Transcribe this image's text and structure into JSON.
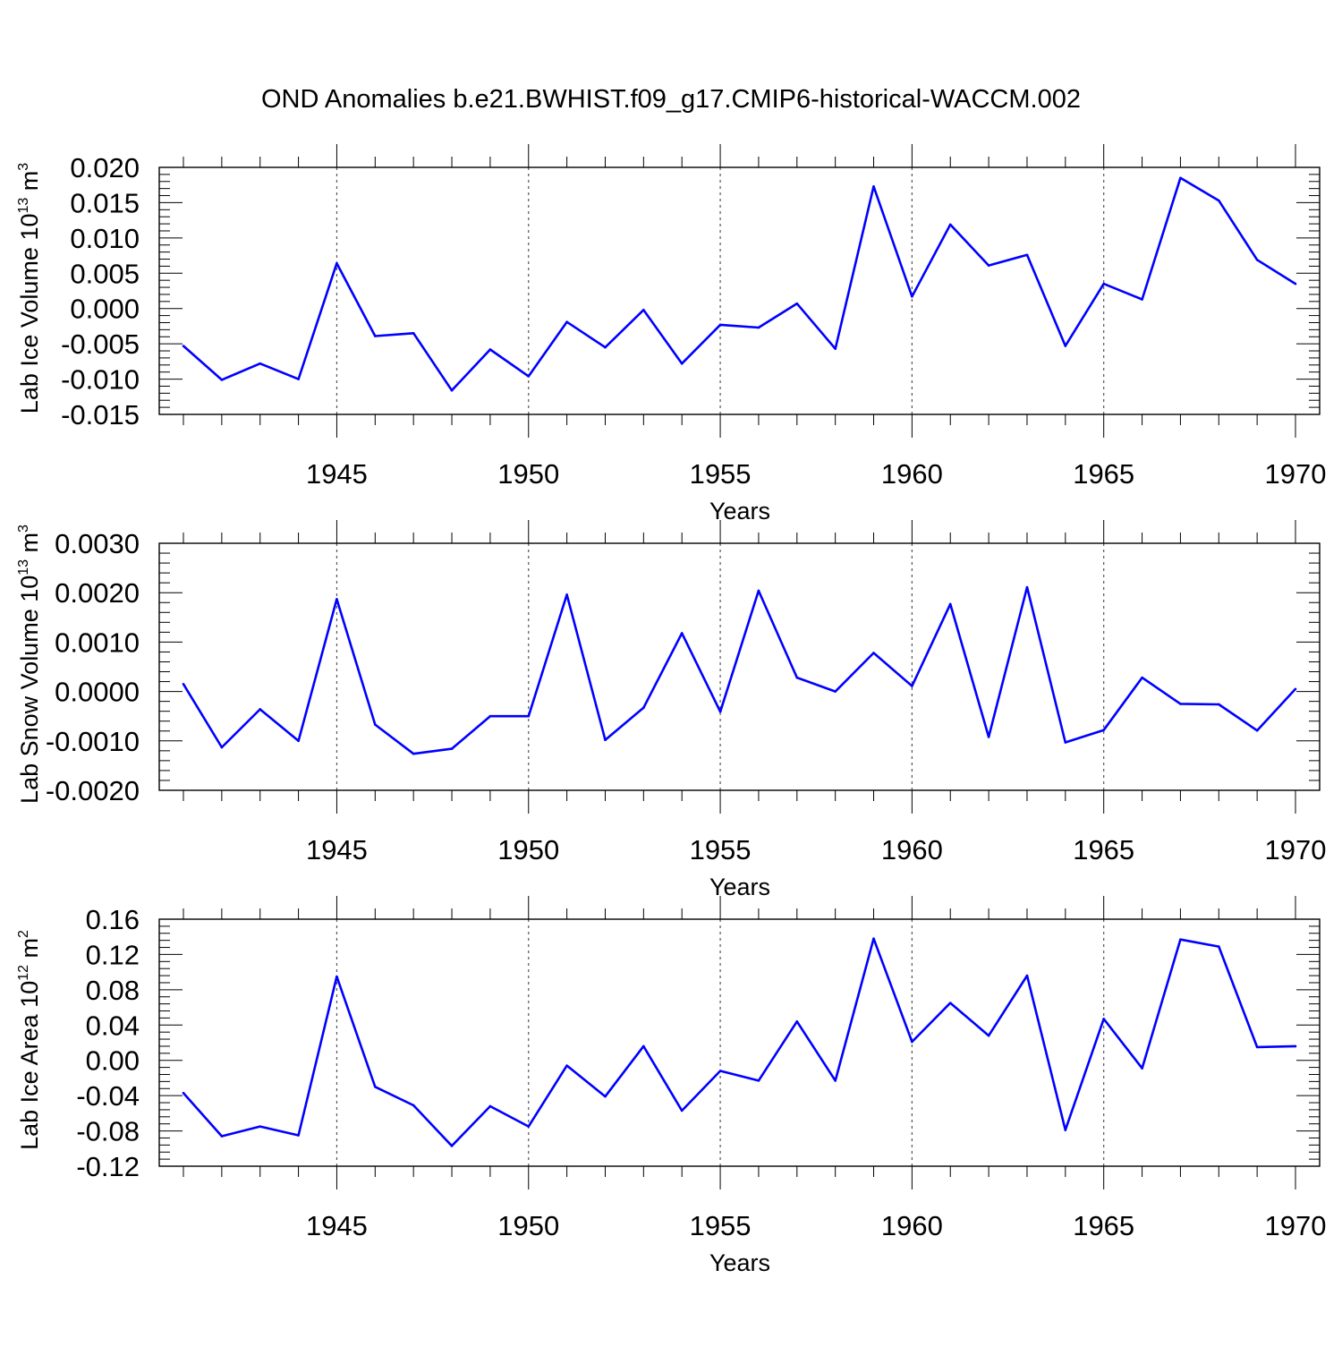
{
  "title": "OND Anomalies b.e21.BWHIST.f09_g17.CMIP6-historical-WACCM.002",
  "chart_data": [
    {
      "type": "line",
      "ylabel": "Lab Ice Volume 10",
      "ylabel_sup": "13",
      "ylabel_unit": "m",
      "ylabel_unit_sup": "3",
      "xlabel": "Years",
      "xlim": [
        1941,
        1970
      ],
      "ylim": [
        -0.015,
        0.02
      ],
      "yticks": [
        -0.015,
        -0.01,
        -0.005,
        0.0,
        0.005,
        0.01,
        0.015,
        0.02
      ],
      "ytick_labels": [
        "-0.015",
        "-0.010",
        "-0.005",
        "0.000",
        "0.005",
        "0.010",
        "0.015",
        "0.020"
      ],
      "xticks": [
        1945,
        1950,
        1955,
        1960,
        1965,
        1970
      ],
      "xtick_labels": [
        "1945",
        "1950",
        "1955",
        "1960",
        "1965",
        "1970"
      ],
      "color": "#0000ff",
      "x": [
        1941,
        1942,
        1943,
        1944,
        1945,
        1946,
        1947,
        1948,
        1949,
        1950,
        1951,
        1952,
        1953,
        1954,
        1955,
        1956,
        1957,
        1958,
        1959,
        1960,
        1961,
        1962,
        1963,
        1964,
        1965,
        1966,
        1967,
        1968,
        1969,
        1970
      ],
      "values": [
        -0.0053,
        -0.0101,
        -0.0078,
        -0.01,
        0.0064,
        -0.0039,
        -0.0035,
        -0.0116,
        -0.0058,
        -0.0096,
        -0.0019,
        -0.0055,
        -0.0002,
        -0.0078,
        -0.0023,
        -0.0027,
        0.0007,
        -0.0057,
        0.0173,
        0.0017,
        0.0119,
        0.0061,
        0.0076,
        -0.0053,
        0.0035,
        0.0013,
        0.0185,
        0.0153,
        0.0069,
        0.0035
      ]
    },
    {
      "type": "line",
      "ylabel": "Lab Snow Volume 10",
      "ylabel_sup": "13",
      "ylabel_unit": "m",
      "ylabel_unit_sup": "3",
      "xlabel": "Years",
      "xlim": [
        1941,
        1970
      ],
      "ylim": [
        -0.002,
        0.003
      ],
      "yticks": [
        -0.002,
        -0.001,
        0.0,
        0.001,
        0.002,
        0.003
      ],
      "ytick_labels": [
        "-0.0020",
        "-0.0010",
        "0.0000",
        "0.0010",
        "0.0020",
        "0.0030"
      ],
      "xticks": [
        1945,
        1950,
        1955,
        1960,
        1965,
        1970
      ],
      "xtick_labels": [
        "1945",
        "1950",
        "1955",
        "1960",
        "1965",
        "1970"
      ],
      "color": "#0000ff",
      "x": [
        1941,
        1942,
        1943,
        1944,
        1945,
        1946,
        1947,
        1948,
        1949,
        1950,
        1951,
        1952,
        1953,
        1954,
        1955,
        1956,
        1957,
        1958,
        1959,
        1960,
        1961,
        1962,
        1963,
        1964,
        1965,
        1966,
        1967,
        1968,
        1969,
        1970
      ],
      "values": [
        0.00015,
        -0.00113,
        -0.00036,
        -0.001,
        0.00187,
        -0.00067,
        -0.00126,
        -0.00116,
        -0.0005,
        -0.0005,
        0.00196,
        -0.00098,
        -0.00033,
        0.00118,
        -0.00041,
        0.00204,
        0.00028,
        0.0,
        0.00078,
        0.00011,
        0.00177,
        -0.00092,
        0.00211,
        -0.00103,
        -0.00078,
        0.00028,
        -0.00025,
        -0.00026,
        -0.00079,
        5e-05
      ]
    },
    {
      "type": "line",
      "ylabel": "Lab Ice Area 10",
      "ylabel_sup": "12",
      "ylabel_unit": "m",
      "ylabel_unit_sup": "2",
      "xlabel": "Years",
      "xlim": [
        1941,
        1970
      ],
      "ylim": [
        -0.12,
        0.16
      ],
      "yticks": [
        -0.12,
        -0.08,
        -0.04,
        0.0,
        0.04,
        0.08,
        0.12,
        0.16
      ],
      "ytick_labels": [
        "-0.12",
        "-0.08",
        "-0.04",
        "0.00",
        "0.04",
        "0.08",
        "0.12",
        "0.16"
      ],
      "xticks": [
        1945,
        1950,
        1955,
        1960,
        1965,
        1970
      ],
      "xtick_labels": [
        "1945",
        "1950",
        "1955",
        "1960",
        "1965",
        "1970"
      ],
      "color": "#0000ff",
      "x": [
        1941,
        1942,
        1943,
        1944,
        1945,
        1946,
        1947,
        1948,
        1949,
        1950,
        1951,
        1952,
        1953,
        1954,
        1955,
        1956,
        1957,
        1958,
        1959,
        1960,
        1961,
        1962,
        1963,
        1964,
        1965,
        1966,
        1967,
        1968,
        1969,
        1970
      ],
      "values": [
        -0.037,
        -0.086,
        -0.075,
        -0.085,
        0.095,
        -0.03,
        -0.051,
        -0.097,
        -0.052,
        -0.075,
        -0.006,
        -0.041,
        0.016,
        -0.057,
        -0.012,
        -0.023,
        0.044,
        -0.023,
        0.138,
        0.021,
        0.065,
        0.028,
        0.096,
        -0.079,
        0.047,
        -0.009,
        0.137,
        0.129,
        0.015,
        0.016
      ]
    }
  ]
}
